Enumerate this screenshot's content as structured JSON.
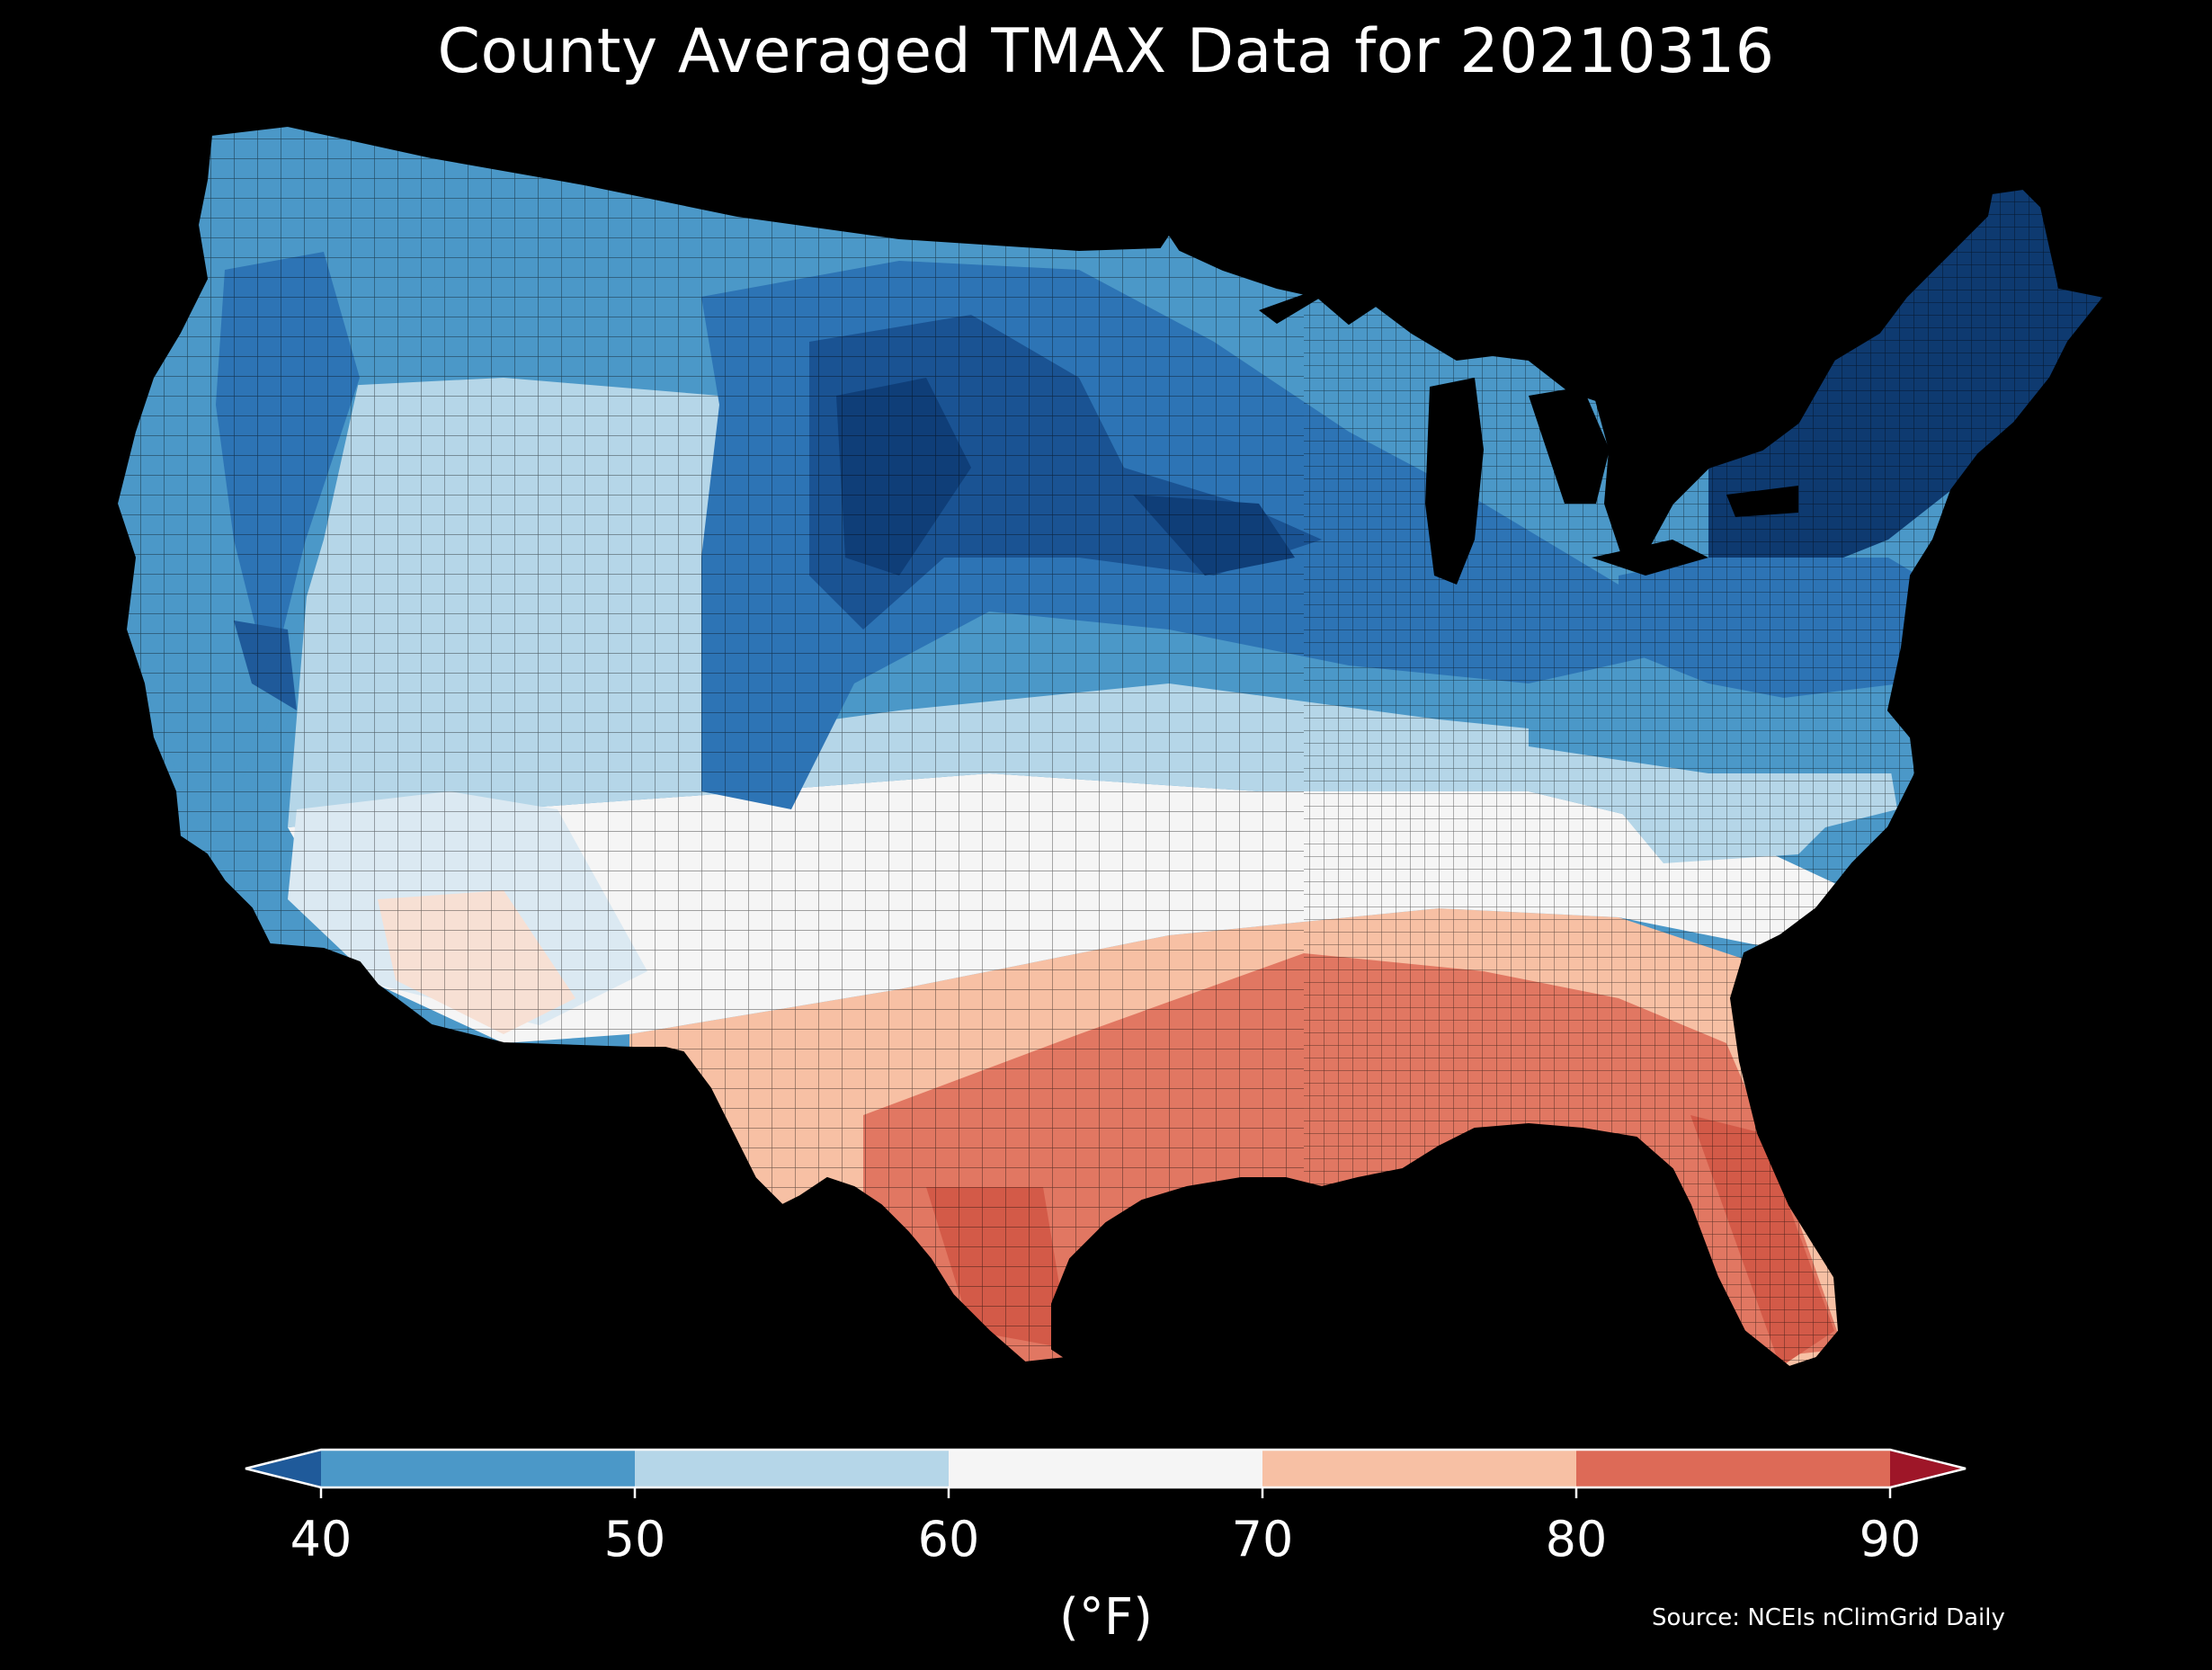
{
  "title": "County Averaged TMAX Data for 20210316",
  "source": "Source: NCEIs nClimGrid Daily",
  "colorbar": {
    "unit": "(°F)",
    "ticks": [
      "40",
      "50",
      "60",
      "70",
      "80",
      "90"
    ],
    "bins": [
      {
        "range": [
          40,
          50
        ],
        "color": "#4b98c8"
      },
      {
        "range": [
          50,
          60
        ],
        "color": "#b5d6e8"
      },
      {
        "range": [
          60,
          70
        ],
        "color": "#f5f5f5"
      },
      {
        "range": [
          70,
          80
        ],
        "color": "#f7c0a4"
      },
      {
        "range": [
          80,
          90
        ],
        "color": "#dd6a57"
      }
    ],
    "under_color": "#1f5a9a",
    "over_color": "#9e1628"
  },
  "map": {
    "region": "Contiguous United States",
    "variable": "TMAX",
    "date": "20210316",
    "background": "#000000"
  }
}
